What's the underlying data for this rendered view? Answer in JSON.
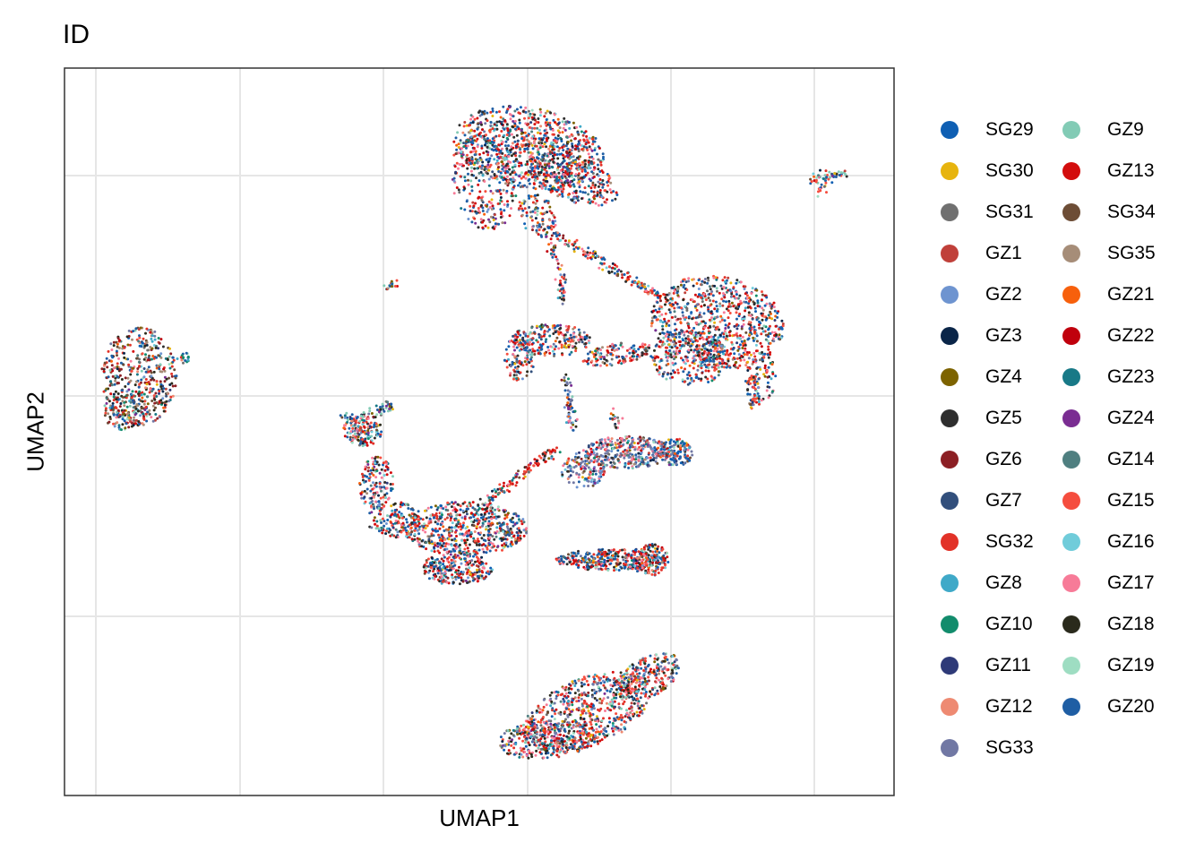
{
  "chart_data": {
    "type": "scatter",
    "title": "ID",
    "xlabel": "UMAP1",
    "ylabel": "UMAP2",
    "x_tick_labels": [],
    "y_tick_labels": [],
    "grid": true,
    "legend_position": "right",
    "legend_columns": 2,
    "series": [
      {
        "name": "SG29",
        "color": "#0F5FB3"
      },
      {
        "name": "SG30",
        "color": "#E7B40E"
      },
      {
        "name": "SG31",
        "color": "#707070"
      },
      {
        "name": "GZ1",
        "color": "#C0403A"
      },
      {
        "name": "GZ2",
        "color": "#6E94D0"
      },
      {
        "name": "GZ3",
        "color": "#0A2548"
      },
      {
        "name": "GZ4",
        "color": "#7D6300"
      },
      {
        "name": "GZ5",
        "color": "#2E2E2E"
      },
      {
        "name": "GZ6",
        "color": "#8C1F24"
      },
      {
        "name": "GZ7",
        "color": "#324F7C"
      },
      {
        "name": "SG32",
        "color": "#E23228"
      },
      {
        "name": "GZ8",
        "color": "#3FA9C8"
      },
      {
        "name": "GZ10",
        "color": "#128C6C"
      },
      {
        "name": "GZ11",
        "color": "#2E3A78"
      },
      {
        "name": "GZ12",
        "color": "#EE8A72"
      },
      {
        "name": "SG33",
        "color": "#7178A4"
      },
      {
        "name": "GZ9",
        "color": "#82CBB5"
      },
      {
        "name": "GZ13",
        "color": "#D30D0D"
      },
      {
        "name": "SG34",
        "color": "#6D4D36"
      },
      {
        "name": "SG35",
        "color": "#A68D78"
      },
      {
        "name": "GZ21",
        "color": "#F7600C"
      },
      {
        "name": "GZ22",
        "color": "#C0000D"
      },
      {
        "name": "GZ23",
        "color": "#187987"
      },
      {
        "name": "GZ24",
        "color": "#7A2D92"
      },
      {
        "name": "GZ14",
        "color": "#4F7F80"
      },
      {
        "name": "GZ15",
        "color": "#F54D3E"
      },
      {
        "name": "GZ16",
        "color": "#70CCDA"
      },
      {
        "name": "GZ17",
        "color": "#F77B98"
      },
      {
        "name": "GZ18",
        "color": "#2A2A1C"
      },
      {
        "name": "GZ19",
        "color": "#9EDDC2"
      },
      {
        "name": "GZ20",
        "color": "#1F5EA4"
      }
    ]
  }
}
